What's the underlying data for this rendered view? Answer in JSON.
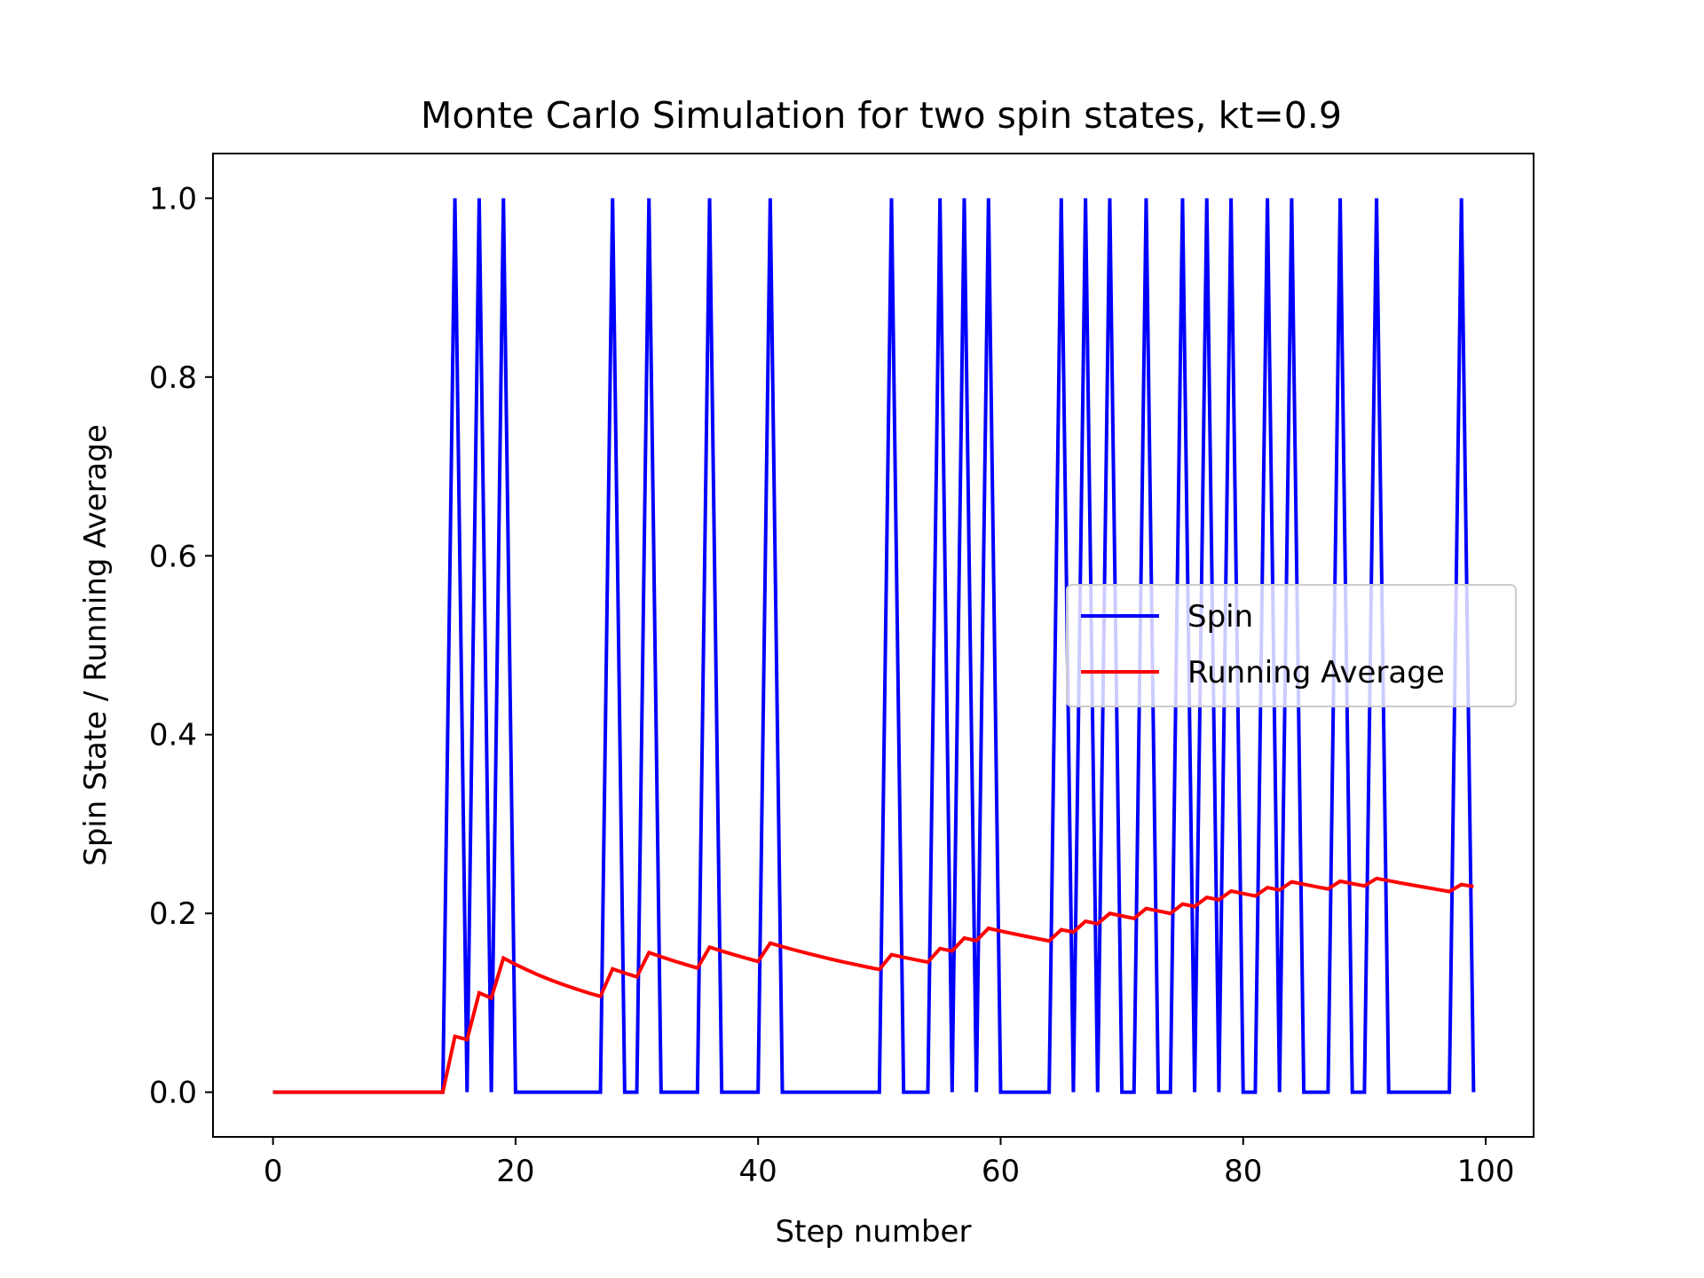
{
  "chart_data": {
    "type": "line",
    "title": "Monte Carlo Simulation for two spin states, kt=0.9",
    "xlabel": "Step number",
    "ylabel": "Spin State / Running Average",
    "xlim": [
      -4.95,
      103.95
    ],
    "ylim": [
      -0.05,
      1.05
    ],
    "xticks": [
      0,
      20,
      40,
      60,
      80,
      100
    ],
    "xtick_labels": [
      "0",
      "20",
      "40",
      "60",
      "80",
      "100"
    ],
    "yticks": [
      0.0,
      0.2,
      0.4,
      0.6,
      0.8,
      1.0
    ],
    "ytick_labels": [
      "0.0",
      "0.2",
      "0.4",
      "0.6",
      "0.8",
      "1.0"
    ],
    "grid": false,
    "legend_position": "center-right",
    "x": [
      0,
      1,
      2,
      3,
      4,
      5,
      6,
      7,
      8,
      9,
      10,
      11,
      12,
      13,
      14,
      15,
      16,
      17,
      18,
      19,
      20,
      21,
      22,
      23,
      24,
      25,
      26,
      27,
      28,
      29,
      30,
      31,
      32,
      33,
      34,
      35,
      36,
      37,
      38,
      39,
      40,
      41,
      42,
      43,
      44,
      45,
      46,
      47,
      48,
      49,
      50,
      51,
      52,
      53,
      54,
      55,
      56,
      57,
      58,
      59,
      60,
      61,
      62,
      63,
      64,
      65,
      66,
      67,
      68,
      69,
      70,
      71,
      72,
      73,
      74,
      75,
      76,
      77,
      78,
      79,
      80,
      81,
      82,
      83,
      84,
      85,
      86,
      87,
      88,
      89,
      90,
      91,
      92,
      93,
      94,
      95,
      96,
      97,
      98,
      99
    ],
    "series": [
      {
        "name": "Spin",
        "color": "#0000ff",
        "values": [
          0,
          0,
          0,
          0,
          0,
          0,
          0,
          0,
          0,
          0,
          0,
          0,
          0,
          0,
          0,
          1,
          0,
          1,
          0,
          1,
          0,
          0,
          0,
          0,
          0,
          0,
          0,
          0,
          1,
          0,
          0,
          1,
          0,
          0,
          0,
          0,
          1,
          0,
          0,
          0,
          0,
          1,
          0,
          0,
          0,
          0,
          0,
          0,
          0,
          0,
          0,
          1,
          0,
          0,
          0,
          1,
          0,
          1,
          0,
          1,
          0,
          0,
          0,
          0,
          0,
          1,
          0,
          1,
          0,
          1,
          0,
          0,
          1,
          0,
          0,
          1,
          0,
          1,
          0,
          1,
          0,
          0,
          1,
          0,
          1,
          0,
          0,
          0,
          1,
          0,
          0,
          1,
          0,
          0,
          0,
          0,
          0,
          0,
          1,
          0
        ]
      },
      {
        "name": "Running Average",
        "color": "#ff0000",
        "values": [
          0,
          0,
          0,
          0,
          0,
          0,
          0,
          0,
          0,
          0,
          0,
          0,
          0,
          0,
          0,
          0.0625,
          0.0588,
          0.1111,
          0.1053,
          0.15,
          0.1429,
          0.1364,
          0.1304,
          0.125,
          0.12,
          0.1154,
          0.1111,
          0.1071,
          0.1379,
          0.1333,
          0.129,
          0.1562,
          0.1515,
          0.1471,
          0.1429,
          0.1389,
          0.1622,
          0.1579,
          0.1538,
          0.15,
          0.1463,
          0.1667,
          0.1628,
          0.1591,
          0.1556,
          0.1522,
          0.1489,
          0.1458,
          0.1429,
          0.14,
          0.1373,
          0.1538,
          0.1509,
          0.1481,
          0.1455,
          0.1607,
          0.1579,
          0.1724,
          0.1695,
          0.1833,
          0.1803,
          0.1774,
          0.1746,
          0.1719,
          0.1692,
          0.1818,
          0.1791,
          0.1912,
          0.1884,
          0.2,
          0.1972,
          0.1944,
          0.2055,
          0.2027,
          0.2,
          0.2105,
          0.2078,
          0.2179,
          0.2152,
          0.225,
          0.2222,
          0.2195,
          0.2289,
          0.2262,
          0.2353,
          0.2326,
          0.2299,
          0.2273,
          0.236,
          0.2333,
          0.2308,
          0.2391,
          0.2366,
          0.234,
          0.2316,
          0.2292,
          0.2268,
          0.2245,
          0.2323,
          0.23
        ]
      }
    ]
  }
}
